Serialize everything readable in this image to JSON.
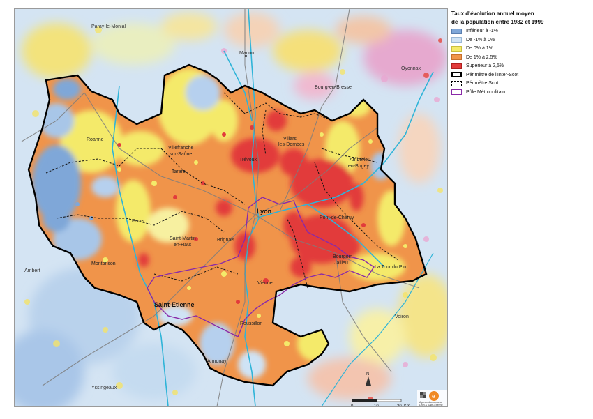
{
  "legend": {
    "title_line1": "Taux d'évolution annuel moyen",
    "title_line2": "de la population entre 1982 et 1999",
    "items": [
      {
        "label": "Inférieur à -1%",
        "color": "#7fa7d8",
        "border": "#5a7fb0"
      },
      {
        "label": "De -1% à 0%",
        "color": "#cfe3f5",
        "border": "#9ab8d6"
      },
      {
        "label": "De 0% à 1%",
        "color": "#f4ea6a",
        "border": "#c9bf3f"
      },
      {
        "label": "De 1% à 2,5%",
        "color": "#f0944a",
        "border": "#c7702c"
      },
      {
        "label": "Supérieur à 2,5%",
        "color": "#e23b3b",
        "border": "#b02020"
      },
      {
        "label": "Périmètre de l'Inter-Scot"
      },
      {
        "label": "Périmètre Scot"
      },
      {
        "label": "Pôle Métropolitain"
      }
    ]
  },
  "places": {
    "paray": "Paray-le-Monial",
    "macon": "Macon",
    "oyonnax": "Oyonnax",
    "bourg": "Bourg-en-Bresse",
    "roanne": "Roanne",
    "villefranche_1": "Villefranche",
    "villefranche_2": "sur-Saône",
    "villars_1": "Villars",
    "villars_2": "les-Dombes",
    "ambérieu_1": "Ambérieu",
    "ambérieu_2": "en-Bugey",
    "trevoux": "Trévoux",
    "tarare": "Tarare",
    "lyon": "Lyon",
    "feurs": "Feurs",
    "pont_cheruy": "Pont-de-Chéruy",
    "st_martin_1": "Saint-Martin",
    "st_martin_2": "en-Haut",
    "brignais": "Brignais",
    "bourgoin_1": "Bourgoin",
    "bourgoin_2": "Jallieu",
    "la_tour": "La Tour du Pin",
    "montbrison": "Montbrison",
    "ambert": "Ambert",
    "vienne": "Vienne",
    "st_etienne": "Saint-Etienne",
    "voiron": "Voiron",
    "roussillon": "Roussillon",
    "annonay": "Annonay",
    "yssingeaux": "Yssingeaux"
  },
  "scale": {
    "t0": "0",
    "t1": "10",
    "t2": "20",
    "unit": "Km"
  },
  "north_label": "N",
  "agency": {
    "line1": "Agence d'urbanisme",
    "line2": "Lyon & Saint-Étienne"
  }
}
